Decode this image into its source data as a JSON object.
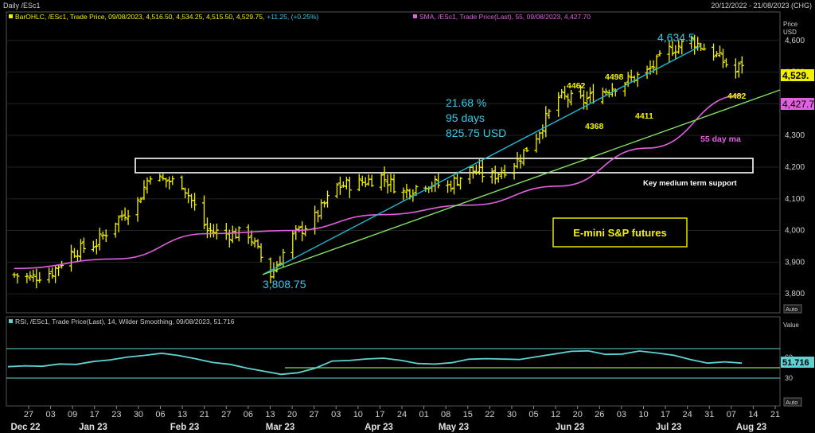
{
  "header": {
    "left_title": "Daily /ESc1",
    "right_range": "20/12/2022 - 21/08/2023 (CHG)"
  },
  "legend": {
    "bar_label": "BarOHLC, /ESc1, Trade Price, 09/08/2023, 4,516.50, 4,534.25, 4,515.50, 4,529.75,",
    "bar_change": "+11.25, (+0.25%)",
    "sma_label": "SMA, /ESc1, Trade Price(Last), 55, 09/08/2023, 4,427.70",
    "rsi_label": "RSI, /ESc1, Trade Price(Last), 14, Wilder Smoothing, 09/08/2023, 51.716"
  },
  "axis": {
    "price_title_1": "Price",
    "price_title_2": "USD",
    "value_title": "Value",
    "auto_label": "Auto",
    "price_ticks": [
      "4,600",
      "4,500",
      "4,400",
      "4,300",
      "4,200",
      "4,100",
      "4,000",
      "3,900",
      "3,800"
    ],
    "rsi_ticks": [
      "60",
      "30"
    ],
    "day_ticks": [
      "27",
      "03",
      "09",
      "17",
      "23",
      "30",
      "06",
      "13",
      "21",
      "27",
      "06",
      "13",
      "20",
      "27",
      "03",
      "10",
      "17",
      "24",
      "01",
      "08",
      "15",
      "22",
      "30",
      "05",
      "12",
      "20",
      "26",
      "03",
      "10",
      "17",
      "24",
      "31",
      "07",
      "14",
      "21"
    ],
    "month_ticks": [
      "Dec 22",
      "Jan 23",
      "Feb 23",
      "Mar 23",
      "Apr 23",
      "May 23",
      "Jun 23",
      "Jul 23",
      "Aug 23"
    ]
  },
  "badges": {
    "last_price": "4,529.",
    "sma_value": "4,427.7",
    "rsi_value": "51.716"
  },
  "annotations": {
    "high_label": "4,634.5",
    "low_label": "3,808.75",
    "stats_line1": "21.68 %",
    "stats_line2": "95 days",
    "stats_line3": "825.75 USD",
    "pivot_4462": "4462",
    "pivot_4498": "4498",
    "pivot_4368": "4368",
    "pivot_4411": "4411",
    "pivot_4482": "4482",
    "sma_caption": "55 day ma",
    "support_caption": "Key medium term support",
    "title_box": "E-mini S&P futures"
  },
  "colors": {
    "background": "#000000",
    "bars": "#f2f200",
    "sma": "#e060e0",
    "rsi": "#5fd3d3",
    "channel_line": "#20b8d8",
    "trend_line": "#80e060",
    "support_box": "#ffffff",
    "grid": "#2a2a2a",
    "axis_text": "#cfcfcf",
    "cyan_text": "#38c8e8"
  },
  "chart_data": {
    "type": "ohlc",
    "title": "E-mini S&P futures",
    "instrument": "/ESc1",
    "period": "Daily",
    "ylim": [
      3760,
      4700
    ],
    "last_close": 4529.75,
    "swing_low": {
      "date": "2023-03-13",
      "value": 3808.75
    },
    "swing_high": {
      "date": "2023-07-27",
      "value": 4634.5
    },
    "move": {
      "pct": 21.68,
      "days": 95,
      "usd": 825.75
    },
    "support_zone": [
      4170,
      4225
    ],
    "closes_by_week": [
      {
        "date": "2022-12-22",
        "close": 3860
      },
      {
        "date": "2022-12-27",
        "close": 3850
      },
      {
        "date": "2023-01-03",
        "close": 3870
      },
      {
        "date": "2023-01-09",
        "close": 3930
      },
      {
        "date": "2023-01-17",
        "close": 3960
      },
      {
        "date": "2023-01-23",
        "close": 4030
      },
      {
        "date": "2023-01-30",
        "close": 4090
      },
      {
        "date": "2023-02-03",
        "close": 4180
      },
      {
        "date": "2023-02-06",
        "close": 4160
      },
      {
        "date": "2023-02-13",
        "close": 4150
      },
      {
        "date": "2023-02-21",
        "close": 4000
      },
      {
        "date": "2023-02-27",
        "close": 3990
      },
      {
        "date": "2023-03-06",
        "close": 3990
      },
      {
        "date": "2023-03-13",
        "close": 3860
      },
      {
        "date": "2023-03-20",
        "close": 3980
      },
      {
        "date": "2023-03-27",
        "close": 4040
      },
      {
        "date": "2023-04-03",
        "close": 4140
      },
      {
        "date": "2023-04-10",
        "close": 4150
      },
      {
        "date": "2023-04-17",
        "close": 4170
      },
      {
        "date": "2023-04-24",
        "close": 4120
      },
      {
        "date": "2023-05-01",
        "close": 4150
      },
      {
        "date": "2023-05-08",
        "close": 4140
      },
      {
        "date": "2023-05-15",
        "close": 4190
      },
      {
        "date": "2023-05-22",
        "close": 4170
      },
      {
        "date": "2023-05-30",
        "close": 4220
      },
      {
        "date": "2023-06-05",
        "close": 4300
      },
      {
        "date": "2023-06-12",
        "close": 4420
      },
      {
        "date": "2023-06-20",
        "close": 4410
      },
      {
        "date": "2023-06-26",
        "close": 4440
      },
      {
        "date": "2023-07-03",
        "close": 4470
      },
      {
        "date": "2023-07-10",
        "close": 4500
      },
      {
        "date": "2023-07-17",
        "close": 4570
      },
      {
        "date": "2023-07-24",
        "close": 4600
      },
      {
        "date": "2023-07-31",
        "close": 4560
      },
      {
        "date": "2023-08-07",
        "close": 4500
      },
      {
        "date": "2023-08-09",
        "close": 4529.75
      }
    ],
    "sma55": [
      {
        "date": "2022-12-22",
        "value": 3880
      },
      {
        "date": "2023-01-23",
        "value": 3910
      },
      {
        "date": "2023-02-21",
        "value": 3990
      },
      {
        "date": "2023-03-20",
        "value": 4000
      },
      {
        "date": "2023-04-17",
        "value": 4050
      },
      {
        "date": "2023-05-15",
        "value": 4080
      },
      {
        "date": "2023-06-12",
        "value": 4140
      },
      {
        "date": "2023-07-10",
        "value": 4260
      },
      {
        "date": "2023-08-09",
        "value": 4427.7
      }
    ],
    "rsi14": {
      "last": 51.716,
      "upper_band": 70,
      "lower_band": 30,
      "values": [
        46,
        48,
        45,
        50,
        47,
        52,
        55,
        58,
        62,
        64,
        60,
        55,
        50,
        48,
        44,
        40,
        36,
        38,
        44,
        52,
        55,
        56,
        58,
        54,
        50,
        48,
        52,
        55,
        57,
        56,
        54,
        60,
        64,
        66,
        68,
        62,
        63,
        66,
        64,
        60,
        55,
        50,
        52,
        51.716
      ]
    }
  }
}
